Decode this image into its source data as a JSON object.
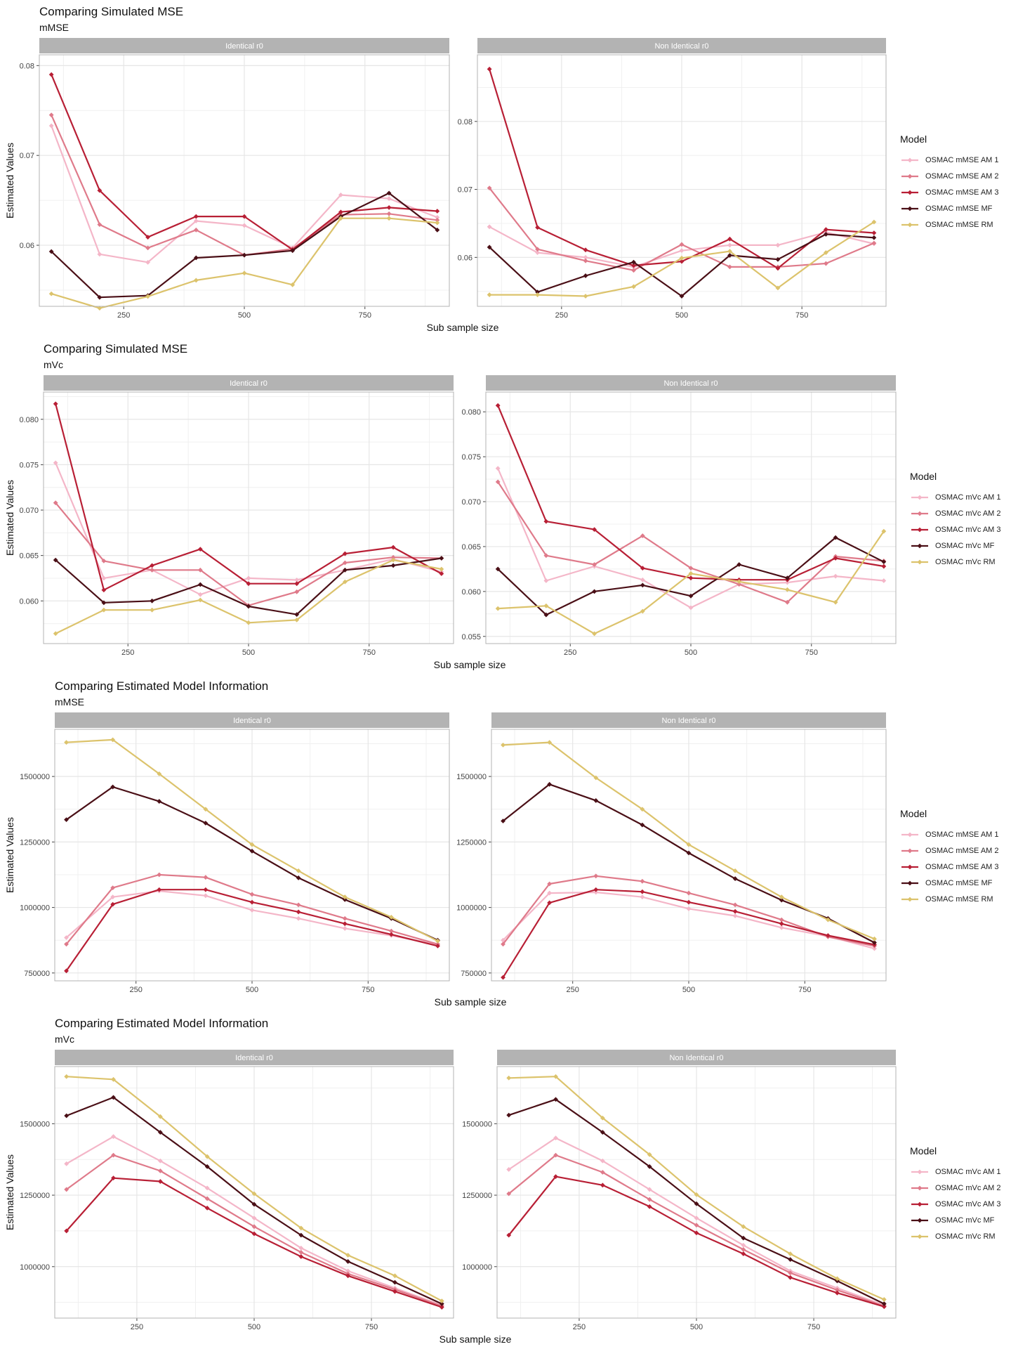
{
  "colors": {
    "AM1": "#f4b6c8",
    "AM2": "#df7a8a",
    "AM3": "#b81f35",
    "MF": "#4a0f16",
    "RM": "#dcc36c",
    "strip": "#b3b3b3",
    "grid": "#e6e6e6",
    "panel_border": "#b3b3b3"
  },
  "chart_data": [
    {
      "type": "line",
      "title": "Comparing Simulated MSE",
      "subtitle": "mMSE",
      "xlabel": "Sub sample size",
      "ylabel": "Estimated Values",
      "legend_title": "Model",
      "legend_position": "right",
      "grid": true,
      "x": [
        100,
        200,
        300,
        400,
        500,
        600,
        700,
        800,
        900
      ],
      "x_ticks": [
        250,
        500,
        750
      ],
      "x_tick_labels": [
        "250",
        "500",
        "750"
      ],
      "panels": [
        {
          "strip": "Identical r0",
          "ylim": [
            0.0532,
            0.0812
          ],
          "y_ticks": [
            0.06,
            0.07,
            0.08
          ],
          "y_tick_labels": [
            "0.06",
            "0.07",
            "0.08"
          ],
          "series": [
            {
              "name": "OSMAC mMSE AM 1",
              "key": "AM1",
              "values": [
                0.0733,
                0.059,
                0.0581,
                0.0627,
                0.0622,
                0.0597,
                0.0656,
                0.0652,
                0.0631
              ]
            },
            {
              "name": "OSMAC mMSE AM 2",
              "key": "AM2",
              "values": [
                0.0745,
                0.0623,
                0.0597,
                0.0617,
                0.0589,
                0.0596,
                0.0634,
                0.0635,
                0.0628
              ]
            },
            {
              "name": "OSMAC mMSE AM 3",
              "key": "AM3",
              "values": [
                0.079,
                0.0661,
                0.0609,
                0.0632,
                0.0632,
                0.0595,
                0.0637,
                0.0642,
                0.0638
              ]
            },
            {
              "name": "OSMAC mMSE MF",
              "key": "MF",
              "values": [
                0.0593,
                0.0542,
                0.0544,
                0.0586,
                0.0589,
                0.0594,
                0.0632,
                0.0658,
                0.0617
              ]
            },
            {
              "name": "OSMAC mMSE RM",
              "key": "RM",
              "values": [
                0.0546,
                0.053,
                0.0543,
                0.0561,
                0.0569,
                0.0556,
                0.063,
                0.063,
                0.0625
              ]
            }
          ]
        },
        {
          "strip": "Non Identical r0",
          "ylim": [
            0.0528,
            0.0898
          ],
          "y_ticks": [
            0.06,
            0.07,
            0.08
          ],
          "y_tick_labels": [
            "0.06",
            "0.07",
            "0.08"
          ],
          "series": [
            {
              "name": "OSMAC mMSE AM 1",
              "key": "AM1",
              "values": [
                0.0645,
                0.0607,
                0.06,
                0.0586,
                0.061,
                0.0618,
                0.0618,
                0.0637,
                0.062
              ]
            },
            {
              "name": "OSMAC mMSE AM 2",
              "key": "AM2",
              "values": [
                0.0702,
                0.0612,
                0.0595,
                0.0581,
                0.0619,
                0.0586,
                0.0586,
                0.0591,
                0.0621
              ]
            },
            {
              "name": "OSMAC mMSE AM 3",
              "key": "AM3",
              "values": [
                0.0877,
                0.0644,
                0.0611,
                0.0588,
                0.0594,
                0.0627,
                0.0584,
                0.0641,
                0.0636
              ]
            },
            {
              "name": "OSMAC mMSE MF",
              "key": "MF",
              "values": [
                0.0615,
                0.0549,
                0.0573,
                0.0593,
                0.0543,
                0.0603,
                0.0597,
                0.0634,
                0.0629
              ]
            },
            {
              "name": "OSMAC mMSE RM",
              "key": "RM",
              "values": [
                0.0545,
                0.0545,
                0.0543,
                0.0557,
                0.0599,
                0.0609,
                0.0555,
                0.0607,
                0.0652
              ]
            }
          ]
        }
      ]
    },
    {
      "type": "line",
      "title": "Comparing Simulated MSE",
      "subtitle": "mVc",
      "xlabel": "Sub sample size",
      "ylabel": "Estimated Values",
      "legend_title": "Model",
      "legend_position": "right",
      "grid": true,
      "x": [
        100,
        200,
        300,
        400,
        500,
        600,
        700,
        800,
        900
      ],
      "x_ticks": [
        250,
        500,
        750
      ],
      "x_tick_labels": [
        "250",
        "500",
        "750"
      ],
      "panels": [
        {
          "strip": "Identical r0",
          "ylim": [
            0.0553,
            0.083
          ],
          "y_ticks": [
            0.06,
            0.065,
            0.07,
            0.075,
            0.08
          ],
          "y_tick_labels": [
            "0.060",
            "0.065",
            "0.070",
            "0.075",
            "0.080"
          ],
          "series": [
            {
              "name": "OSMAC mVc AM 1",
              "key": "AM1",
              "values": [
                0.0752,
                0.0625,
                0.0634,
                0.0607,
                0.0625,
                0.0623,
                0.0634,
                0.0646,
                0.0632
              ]
            },
            {
              "name": "OSMAC mVc AM 2",
              "key": "AM2",
              "values": [
                0.0708,
                0.0644,
                0.0634,
                0.0634,
                0.0595,
                0.061,
                0.0642,
                0.0648,
                0.0647
              ]
            },
            {
              "name": "OSMAC mVc AM 3",
              "key": "AM3",
              "values": [
                0.0817,
                0.0612,
                0.0639,
                0.0657,
                0.0619,
                0.0619,
                0.0652,
                0.0659,
                0.063
              ]
            },
            {
              "name": "OSMAC mVc MF",
              "key": "MF",
              "values": [
                0.0645,
                0.0598,
                0.06,
                0.0618,
                0.0594,
                0.0585,
                0.0634,
                0.0639,
                0.0647
              ]
            },
            {
              "name": "OSMAC mVc RM",
              "key": "RM",
              "values": [
                0.0564,
                0.059,
                0.059,
                0.0601,
                0.0576,
                0.0579,
                0.0621,
                0.0645,
                0.0635
              ]
            }
          ]
        },
        {
          "strip": "Non Identical r0",
          "ylim": [
            0.0542,
            0.0822
          ],
          "y_ticks": [
            0.055,
            0.06,
            0.065,
            0.07,
            0.075,
            0.08
          ],
          "y_tick_labels": [
            "0.055",
            "0.060",
            "0.065",
            "0.070",
            "0.075",
            "0.080"
          ],
          "series": [
            {
              "name": "OSMAC mVc AM 1",
              "key": "AM1",
              "values": [
                0.0737,
                0.0612,
                0.0628,
                0.0613,
                0.0582,
                0.0608,
                0.061,
                0.0617,
                0.0612
              ]
            },
            {
              "name": "OSMAC mVc AM 2",
              "key": "AM2",
              "values": [
                0.0722,
                0.064,
                0.063,
                0.0662,
                0.0626,
                0.0608,
                0.0588,
                0.0639,
                0.0634
              ]
            },
            {
              "name": "OSMAC mVc AM 3",
              "key": "AM3",
              "values": [
                0.0807,
                0.0678,
                0.0669,
                0.0626,
                0.0615,
                0.0613,
                0.0613,
                0.0637,
                0.0628
              ]
            },
            {
              "name": "OSMAC mVc MF",
              "key": "MF",
              "values": [
                0.0625,
                0.0574,
                0.06,
                0.0607,
                0.0595,
                0.063,
                0.0615,
                0.066,
                0.0633
              ]
            },
            {
              "name": "OSMAC mVc RM",
              "key": "RM",
              "values": [
                0.0581,
                0.0584,
                0.0553,
                0.0578,
                0.062,
                0.0611,
                0.0602,
                0.0588,
                0.0667
              ]
            }
          ]
        }
      ]
    },
    {
      "type": "line",
      "title": "Comparing Estimated Model Information",
      "subtitle": "mMSE",
      "xlabel": "Sub sample size",
      "ylabel": "Estimated Values",
      "legend_title": "Model",
      "legend_position": "right",
      "grid": true,
      "x": [
        100,
        200,
        300,
        400,
        500,
        600,
        700,
        800,
        900
      ],
      "x_ticks": [
        250,
        500,
        750
      ],
      "x_tick_labels": [
        "250",
        "500",
        "750"
      ],
      "panels": [
        {
          "strip": "Identical r0",
          "ylim": [
            720000,
            1680000
          ],
          "y_ticks": [
            750000,
            1000000,
            1250000,
            1500000
          ],
          "y_tick_labels": [
            "750000",
            "1000000",
            "1250000",
            "1500000"
          ],
          "series": [
            {
              "name": "OSMAC mMSE AM 1",
              "key": "AM1",
              "values": [
                885000,
                1040000,
                1063000,
                1045000,
                990000,
                958000,
                920000,
                893000,
                858000
              ]
            },
            {
              "name": "OSMAC mMSE AM 2",
              "key": "AM2",
              "values": [
                860000,
                1075000,
                1125000,
                1115000,
                1050000,
                1010000,
                958000,
                910000,
                860000
              ]
            },
            {
              "name": "OSMAC mMSE AM 3",
              "key": "AM3",
              "values": [
                758000,
                1012000,
                1068000,
                1068000,
                1020000,
                983000,
                938000,
                897000,
                853000
              ]
            },
            {
              "name": "OSMAC mMSE MF",
              "key": "MF",
              "values": [
                1335000,
                1460000,
                1405000,
                1322000,
                1215000,
                1113000,
                1030000,
                958000,
                875000
              ]
            },
            {
              "name": "OSMAC mMSE RM",
              "key": "RM",
              "values": [
                1630000,
                1640000,
                1510000,
                1375000,
                1240000,
                1140000,
                1040000,
                963000,
                872000
              ]
            }
          ]
        },
        {
          "strip": "Non Identical r0",
          "ylim": [
            720000,
            1680000
          ],
          "y_ticks": [
            750000,
            1000000,
            1250000,
            1500000
          ],
          "y_tick_labels": [
            "750000",
            "1000000",
            "1250000",
            "1500000"
          ],
          "series": [
            {
              "name": "OSMAC mMSE AM 1",
              "key": "AM1",
              "values": [
                875000,
                1055000,
                1058000,
                1040000,
                995000,
                968000,
                923000,
                890000,
                843000
              ]
            },
            {
              "name": "OSMAC mMSE AM 2",
              "key": "AM2",
              "values": [
                860000,
                1090000,
                1120000,
                1100000,
                1055000,
                1010000,
                953000,
                888000,
                853000
              ]
            },
            {
              "name": "OSMAC mMSE AM 3",
              "key": "AM3",
              "values": [
                733000,
                1018000,
                1068000,
                1060000,
                1020000,
                985000,
                938000,
                893000,
                858000
              ]
            },
            {
              "name": "OSMAC mMSE MF",
              "key": "MF",
              "values": [
                1330000,
                1470000,
                1408000,
                1315000,
                1208000,
                1110000,
                1028000,
                958000,
                866000
              ]
            },
            {
              "name": "OSMAC mMSE RM",
              "key": "RM",
              "values": [
                1620000,
                1630000,
                1495000,
                1375000,
                1240000,
                1140000,
                1040000,
                953000,
                880000
              ]
            }
          ]
        }
      ]
    },
    {
      "type": "line",
      "title": "Comparing Estimated Model Information",
      "subtitle": "mVc",
      "xlabel": "Sub sample size",
      "ylabel": "Estimated Values",
      "legend_title": "Model",
      "legend_position": "right",
      "grid": true,
      "x": [
        100,
        200,
        300,
        400,
        500,
        600,
        700,
        800,
        900
      ],
      "x_ticks": [
        250,
        500,
        750
      ],
      "x_tick_labels": [
        "250",
        "500",
        "750"
      ],
      "panels": [
        {
          "strip": "Identical r0",
          "ylim": [
            820000,
            1700000
          ],
          "y_ticks": [
            1000000,
            1250000,
            1500000
          ],
          "y_tick_labels": [
            "1000000",
            "1250000",
            "1500000"
          ],
          "series": [
            {
              "name": "OSMAC mVc AM 1",
              "key": "AM1",
              "values": [
                1360000,
                1455000,
                1370000,
                1275000,
                1170000,
                1065000,
                985000,
                925000,
                865000
              ]
            },
            {
              "name": "OSMAC mVc AM 2",
              "key": "AM2",
              "values": [
                1270000,
                1390000,
                1335000,
                1238000,
                1140000,
                1050000,
                975000,
                920000,
                862000
              ]
            },
            {
              "name": "OSMAC mVc AM 3",
              "key": "AM3",
              "values": [
                1125000,
                1310000,
                1298000,
                1205000,
                1115000,
                1035000,
                968000,
                913000,
                858000
              ]
            },
            {
              "name": "OSMAC mVc MF",
              "key": "MF",
              "values": [
                1528000,
                1592000,
                1470000,
                1350000,
                1218000,
                1110000,
                1018000,
                945000,
                870000
              ]
            },
            {
              "name": "OSMAC mVc RM",
              "key": "RM",
              "values": [
                1665000,
                1655000,
                1525000,
                1385000,
                1255000,
                1135000,
                1040000,
                968000,
                880000
              ]
            }
          ]
        },
        {
          "strip": "Non Identical r0",
          "ylim": [
            820000,
            1700000
          ],
          "y_ticks": [
            1000000,
            1250000,
            1500000
          ],
          "y_tick_labels": [
            "1000000",
            "1250000",
            "1500000"
          ],
          "series": [
            {
              "name": "OSMAC mVc AM 1",
              "key": "AM1",
              "values": [
                1340000,
                1450000,
                1370000,
                1270000,
                1170000,
                1075000,
                985000,
                925000,
                865000
              ]
            },
            {
              "name": "OSMAC mVc AM 2",
              "key": "AM2",
              "values": [
                1255000,
                1390000,
                1330000,
                1235000,
                1145000,
                1060000,
                978000,
                918000,
                862000
              ]
            },
            {
              "name": "OSMAC mVc AM 3",
              "key": "AM3",
              "values": [
                1110000,
                1315000,
                1285000,
                1210000,
                1118000,
                1045000,
                962000,
                908000,
                860000
              ]
            },
            {
              "name": "OSMAC mVc MF",
              "key": "MF",
              "values": [
                1530000,
                1585000,
                1470000,
                1350000,
                1220000,
                1100000,
                1025000,
                950000,
                870000
              ]
            },
            {
              "name": "OSMAC mVc RM",
              "key": "RM",
              "values": [
                1660000,
                1665000,
                1520000,
                1392000,
                1252000,
                1140000,
                1045000,
                958000,
                885000
              ]
            }
          ]
        }
      ]
    }
  ]
}
